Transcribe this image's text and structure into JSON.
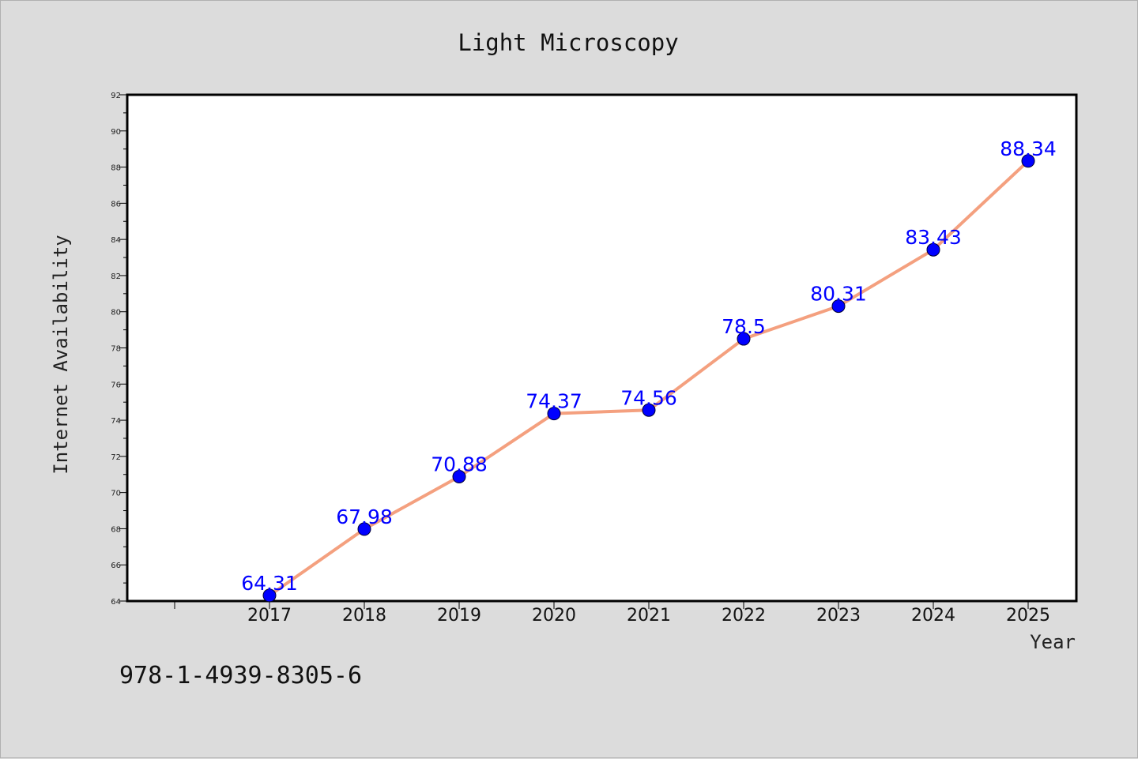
{
  "footer": "978-1-4939-8305-6",
  "colors": {
    "background": "#dcdcdc",
    "plot_background": "#ffffff",
    "line": "#f4a07f",
    "marker": "#0000ff",
    "data_label": "#0000ff"
  },
  "chart_data": {
    "type": "line",
    "title": "Light Microscopy",
    "xlabel": "Year",
    "ylabel": "Internet Availability",
    "categories": [
      "2017",
      "2018",
      "2019",
      "2020",
      "2021",
      "2022",
      "2023",
      "2024",
      "2025"
    ],
    "series": [
      {
        "values": [
          64.31,
          67.98,
          70.88,
          74.37,
          74.56,
          78.5,
          80.31,
          83.43,
          88.34
        ],
        "labels": [
          "64.31",
          "67.98",
          "70.88",
          "74.37",
          "74.56",
          "78.5",
          "80.31",
          "83.43",
          "88.34"
        ]
      }
    ],
    "ylim": [
      64,
      92
    ],
    "yticks": [
      64,
      66,
      68,
      70,
      72,
      74,
      76,
      78,
      80,
      82,
      84,
      86,
      88,
      90,
      92
    ],
    "grid": false,
    "legend": "none"
  }
}
